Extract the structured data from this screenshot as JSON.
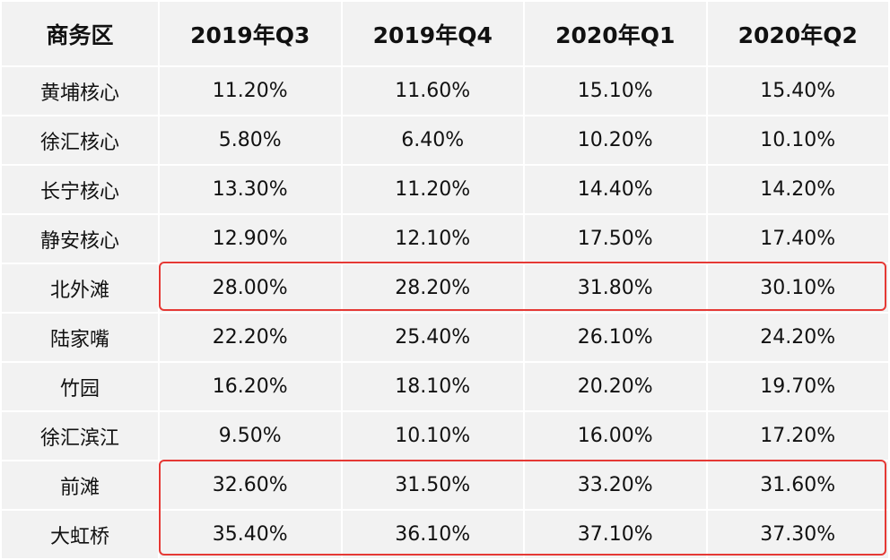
{
  "chart_data": {
    "type": "table",
    "columns": [
      "商务区",
      "2019年Q3",
      "2019年Q4",
      "2020年Q1",
      "2020年Q2"
    ],
    "rows": [
      {
        "name": "黄埔核心",
        "values": [
          "11.20%",
          "11.60%",
          "15.10%",
          "15.40%"
        ]
      },
      {
        "name": "徐汇核心",
        "values": [
          "5.80%",
          "6.40%",
          "10.20%",
          "10.10%"
        ]
      },
      {
        "name": "长宁核心",
        "values": [
          "13.30%",
          "11.20%",
          "14.40%",
          "14.20%"
        ]
      },
      {
        "name": "静安核心",
        "values": [
          "12.90%",
          "12.10%",
          "17.50%",
          "17.40%"
        ]
      },
      {
        "name": "北外滩",
        "values": [
          "28.00%",
          "28.20%",
          "31.80%",
          "30.10%"
        ]
      },
      {
        "name": "陆家嘴",
        "values": [
          "22.20%",
          "25.40%",
          "26.10%",
          "24.20%"
        ]
      },
      {
        "name": "竹园",
        "values": [
          "16.20%",
          "18.10%",
          "20.20%",
          "19.70%"
        ]
      },
      {
        "name": "徐汇滨江",
        "values": [
          "9.50%",
          "10.10%",
          "16.00%",
          "17.20%"
        ]
      },
      {
        "name": "前滩",
        "values": [
          "32.60%",
          "31.50%",
          "33.20%",
          "31.60%"
        ]
      },
      {
        "name": "大虹桥",
        "values": [
          "35.40%",
          "36.10%",
          "37.10%",
          "37.30%"
        ]
      }
    ],
    "highlighted_rows": [
      "北外滩",
      "前滩",
      "大虹桥"
    ],
    "highlight_color": "#e53935"
  }
}
